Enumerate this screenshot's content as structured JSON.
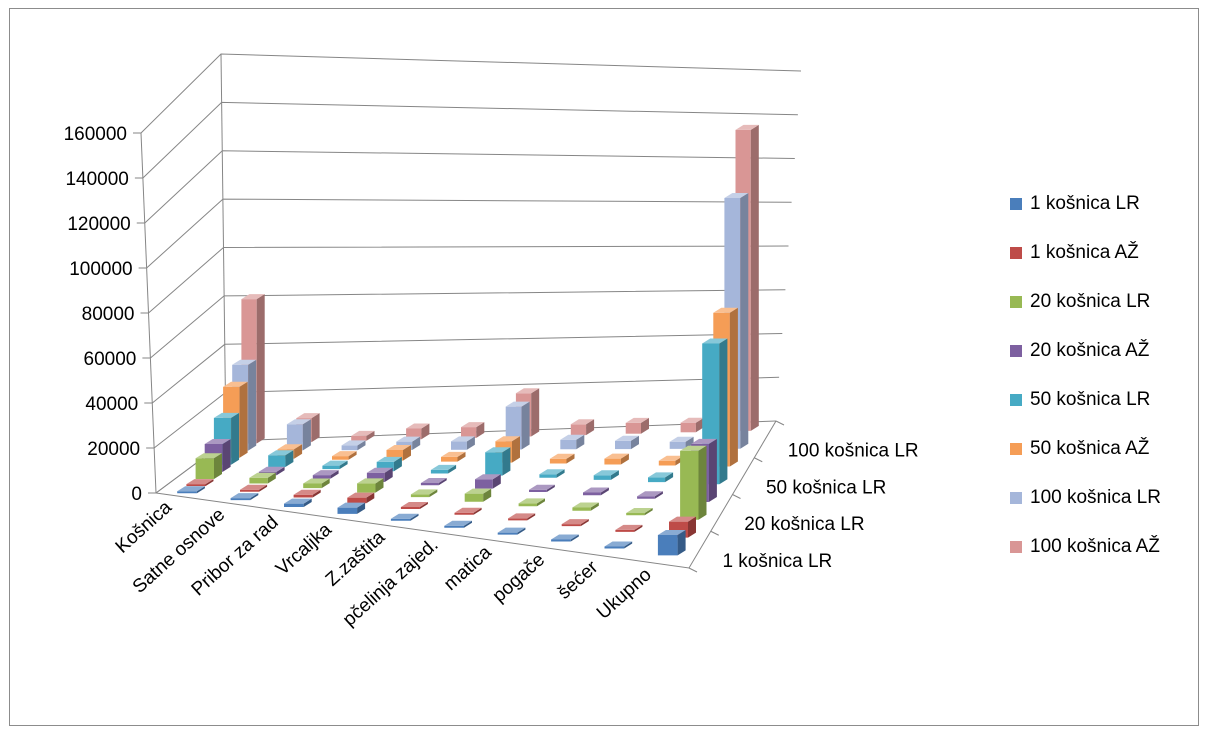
{
  "chart_data": {
    "type": "bar",
    "subtype": "3d-column",
    "categories": [
      "Košnica",
      "Satne osnove",
      "Pribor za rad",
      "Vrcaljka",
      "Z.zaštita",
      "pčelinja zajed.",
      "matica",
      "pogače",
      "šećer",
      "Ukupno"
    ],
    "depth_labels": [
      "1 košnica LR",
      "20 košnica LR",
      "50 košnica LR",
      "100 košnica LR"
    ],
    "y_ticks": [
      "0",
      "20000",
      "40000",
      "60000",
      "80000",
      "100000",
      "120000",
      "140000",
      "160000"
    ],
    "ylim": [
      0,
      160000
    ],
    "legend_position": "right",
    "series": [
      {
        "name": "1 košnica LR",
        "color": "#4a7ebb",
        "values": [
          500,
          500,
          1500,
          2800,
          500,
          700,
          700,
          700,
          600,
          9000
        ]
      },
      {
        "name": "1 košnica AŽ",
        "color": "#be4b48",
        "values": [
          400,
          400,
          1200,
          2500,
          400,
          600,
          600,
          600,
          500,
          7000
        ]
      },
      {
        "name": "20 košnica LR",
        "color": "#98b954",
        "values": [
          9000,
          2500,
          2000,
          4000,
          1200,
          3500,
          1200,
          1400,
          1000,
          30000
        ]
      },
      {
        "name": "20 košnica AŽ",
        "color": "#7d60a0",
        "values": [
          12000,
          1500,
          1500,
          4000,
          1000,
          4000,
          1000,
          1200,
          1000,
          25000
        ]
      },
      {
        "name": "50 košnica LR",
        "color": "#46aac4",
        "values": [
          20000,
          5000,
          1500,
          4000,
          1500,
          10000,
          1500,
          2000,
          2000,
          60000
        ]
      },
      {
        "name": "50 košnica AŽ",
        "color": "#f59d56",
        "values": [
          30000,
          4000,
          1500,
          4500,
          2000,
          9000,
          2000,
          2500,
          2000,
          65000
        ]
      },
      {
        "name": "100 košnica LR",
        "color": "#a5b6da",
        "values": [
          36000,
          11000,
          2000,
          3500,
          3500,
          18000,
          4000,
          3500,
          3000,
          105000
        ]
      },
      {
        "name": "100 košnica AŽ",
        "color": "#d99695",
        "values": [
          60000,
          10000,
          2000,
          4500,
          4500,
          18000,
          4500,
          4500,
          4000,
          125000
        ]
      }
    ]
  }
}
